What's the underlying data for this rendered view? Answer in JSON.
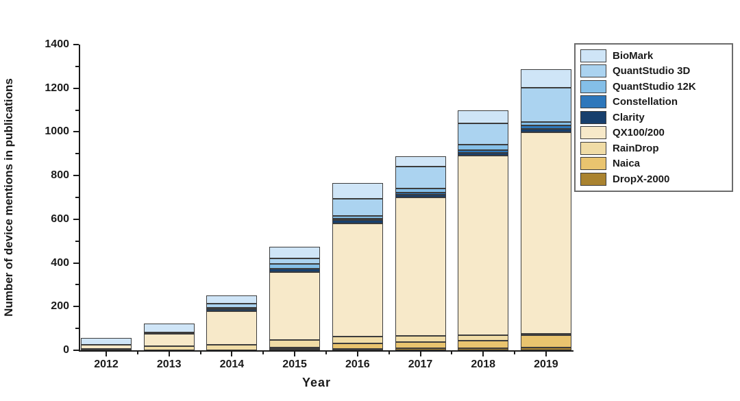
{
  "figure": {
    "background": "#ffffff",
    "axis_color": "#1a1a1a",
    "segment_border_color": "#3c3c3c"
  },
  "chart_data": {
    "type": "bar",
    "stacked": true,
    "title": "",
    "xlabel": "Year",
    "ylabel": "Number of device mentions in publications",
    "ylim": [
      0,
      1400
    ],
    "ytick_major_step": 200,
    "ytick_minor_step": 100,
    "grid": false,
    "legend_position": "top-right",
    "categories": [
      "2012",
      "2013",
      "2014",
      "2015",
      "2016",
      "2017",
      "2018",
      "2019"
    ],
    "series": [
      {
        "name": "DropX-2000",
        "color": "#aa8330",
        "values": [
          0,
          0,
          0,
          3,
          4,
          9,
          10,
          14
        ]
      },
      {
        "name": "Naica",
        "color": "#e9c46f",
        "values": [
          0,
          0,
          0,
          5,
          25,
          30,
          35,
          56
        ]
      },
      {
        "name": "RainDrop",
        "color": "#f0dca6",
        "values": [
          2,
          18,
          25,
          35,
          32,
          28,
          25,
          5
        ]
      },
      {
        "name": "QX100/200",
        "color": "#f7e9c9",
        "values": [
          18,
          57,
          155,
          309,
          518,
          633,
          821,
          921
        ]
      },
      {
        "name": "Clarity",
        "color": "#173f6d",
        "values": [
          0,
          0,
          8,
          18,
          15,
          12,
          14,
          16
        ]
      },
      {
        "name": "Constellation",
        "color": "#2d77bb",
        "values": [
          0,
          0,
          0,
          0,
          6,
          10,
          13,
          15
        ]
      },
      {
        "name": "QuantStudio 12K",
        "color": "#84bfe8",
        "values": [
          0,
          0,
          6,
          20,
          14,
          20,
          25,
          18
        ]
      },
      {
        "name": "QuantStudio 3D",
        "color": "#abd3f0",
        "values": [
          0,
          5,
          18,
          25,
          78,
          100,
          95,
          157
        ]
      },
      {
        "name": "BioMark",
        "color": "#cfe5f7",
        "values": [
          32,
          42,
          38,
          54,
          73,
          46,
          60,
          83
        ]
      }
    ],
    "legend_entries_top_to_bottom": [
      "BioMark",
      "QuantStudio 3D",
      "QuantStudio 12K",
      "Constellation",
      "Clarity",
      "QX100/200",
      "RainDrop",
      "Naica",
      "DropX-2000"
    ],
    "totals": [
      52,
      122,
      250,
      469,
      765,
      888,
      1098,
      1285
    ]
  }
}
